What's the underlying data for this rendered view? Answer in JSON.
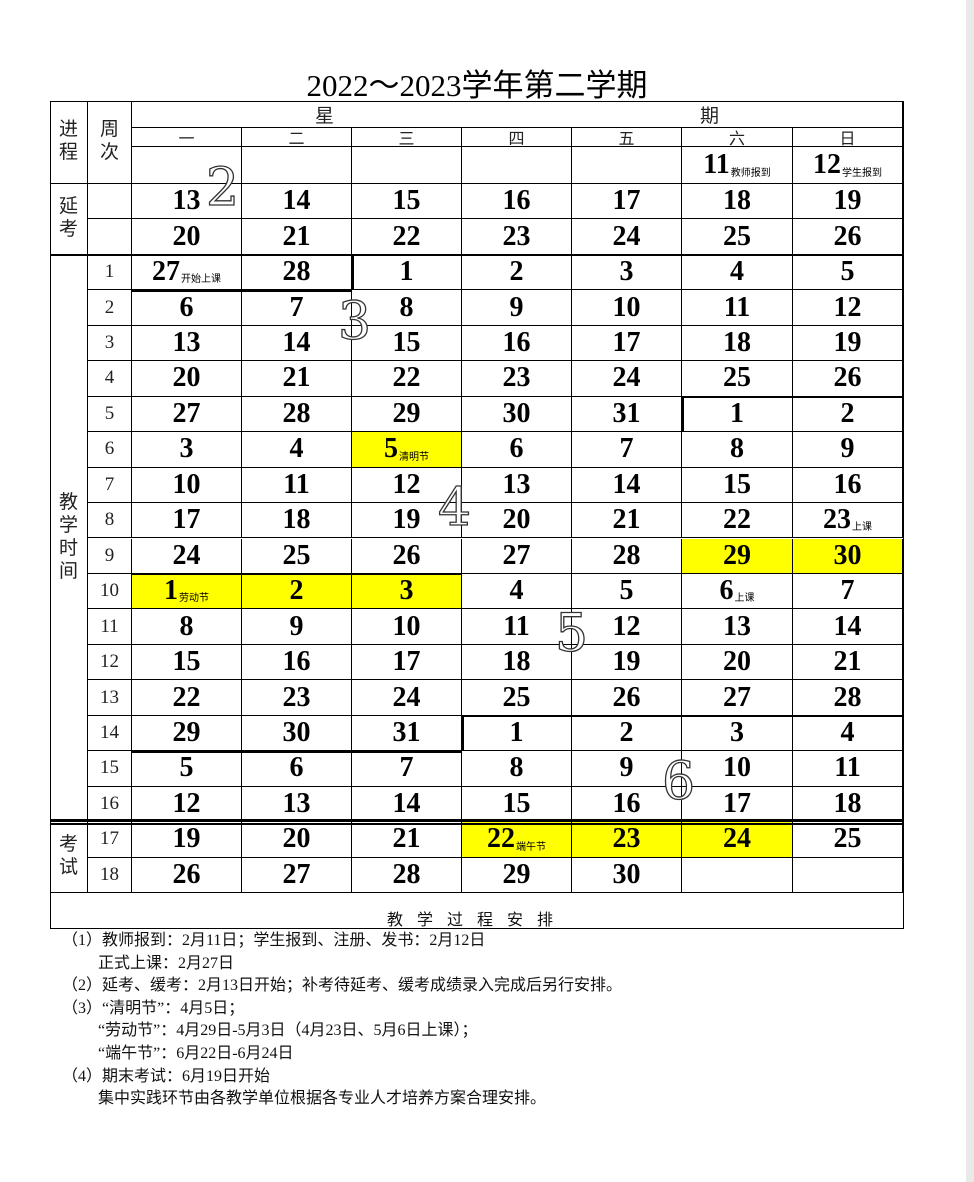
{
  "title": "2022～2023学年第二学期",
  "header": {
    "progress": "进程",
    "week": "周次",
    "xing": "星",
    "qi": "期",
    "weekdays": [
      "一",
      "二",
      "三",
      "四",
      "五",
      "六",
      "日"
    ]
  },
  "sections": {
    "makeup": "延考",
    "teaching": "教学时间",
    "exam": "考试"
  },
  "highlight_color": "#ffff00",
  "rows": [
    {
      "week": "",
      "cells": [
        {
          "d": ""
        },
        {
          "d": ""
        },
        {
          "d": ""
        },
        {
          "d": ""
        },
        {
          "d": ""
        },
        {
          "d": "11",
          "n": "教师报到"
        },
        {
          "d": "12",
          "n": "学生报到"
        }
      ]
    },
    {
      "week": "",
      "cells": [
        {
          "d": "13"
        },
        {
          "d": "14"
        },
        {
          "d": "15"
        },
        {
          "d": "16"
        },
        {
          "d": "17"
        },
        {
          "d": "18"
        },
        {
          "d": "19"
        }
      ]
    },
    {
      "week": "",
      "cells": [
        {
          "d": "20"
        },
        {
          "d": "21"
        },
        {
          "d": "22"
        },
        {
          "d": "23"
        },
        {
          "d": "24"
        },
        {
          "d": "25"
        },
        {
          "d": "26"
        }
      ]
    },
    {
      "week": "1",
      "cells": [
        {
          "d": "27",
          "n": "开始上课"
        },
        {
          "d": "28"
        },
        {
          "d": "1"
        },
        {
          "d": "2"
        },
        {
          "d": "3"
        },
        {
          "d": "4"
        },
        {
          "d": "5"
        }
      ]
    },
    {
      "week": "2",
      "cells": [
        {
          "d": "6"
        },
        {
          "d": "7"
        },
        {
          "d": "8"
        },
        {
          "d": "9"
        },
        {
          "d": "10"
        },
        {
          "d": "11"
        },
        {
          "d": "12"
        }
      ]
    },
    {
      "week": "3",
      "cells": [
        {
          "d": "13"
        },
        {
          "d": "14"
        },
        {
          "d": "15"
        },
        {
          "d": "16"
        },
        {
          "d": "17"
        },
        {
          "d": "18"
        },
        {
          "d": "19"
        }
      ]
    },
    {
      "week": "4",
      "cells": [
        {
          "d": "20"
        },
        {
          "d": "21"
        },
        {
          "d": "22"
        },
        {
          "d": "23"
        },
        {
          "d": "24"
        },
        {
          "d": "25"
        },
        {
          "d": "26"
        }
      ]
    },
    {
      "week": "5",
      "cells": [
        {
          "d": "27"
        },
        {
          "d": "28"
        },
        {
          "d": "29"
        },
        {
          "d": "30"
        },
        {
          "d": "31"
        },
        {
          "d": "1"
        },
        {
          "d": "2"
        }
      ]
    },
    {
      "week": "6",
      "cells": [
        {
          "d": "3"
        },
        {
          "d": "4"
        },
        {
          "d": "5",
          "n": "清明节",
          "hl": true
        },
        {
          "d": "6"
        },
        {
          "d": "7"
        },
        {
          "d": "8"
        },
        {
          "d": "9"
        }
      ]
    },
    {
      "week": "7",
      "cells": [
        {
          "d": "10"
        },
        {
          "d": "11"
        },
        {
          "d": "12"
        },
        {
          "d": "13"
        },
        {
          "d": "14"
        },
        {
          "d": "15"
        },
        {
          "d": "16"
        }
      ]
    },
    {
      "week": "8",
      "cells": [
        {
          "d": "17"
        },
        {
          "d": "18"
        },
        {
          "d": "19"
        },
        {
          "d": "20"
        },
        {
          "d": "21"
        },
        {
          "d": "22"
        },
        {
          "d": "23",
          "n": "上课"
        }
      ]
    },
    {
      "week": "9",
      "cells": [
        {
          "d": "24"
        },
        {
          "d": "25"
        },
        {
          "d": "26"
        },
        {
          "d": "27"
        },
        {
          "d": "28"
        },
        {
          "d": "29",
          "hl": true
        },
        {
          "d": "30",
          "hl": true
        }
      ]
    },
    {
      "week": "10",
      "cells": [
        {
          "d": "1",
          "n": "劳动节",
          "hl": true
        },
        {
          "d": "2",
          "hl": true
        },
        {
          "d": "3",
          "hl": true
        },
        {
          "d": "4"
        },
        {
          "d": "5"
        },
        {
          "d": "6",
          "n": "上课"
        },
        {
          "d": "7"
        }
      ]
    },
    {
      "week": "11",
      "cells": [
        {
          "d": "8"
        },
        {
          "d": "9"
        },
        {
          "d": "10"
        },
        {
          "d": "11"
        },
        {
          "d": "12"
        },
        {
          "d": "13"
        },
        {
          "d": "14"
        }
      ]
    },
    {
      "week": "12",
      "cells": [
        {
          "d": "15"
        },
        {
          "d": "16"
        },
        {
          "d": "17"
        },
        {
          "d": "18"
        },
        {
          "d": "19"
        },
        {
          "d": "20"
        },
        {
          "d": "21"
        }
      ]
    },
    {
      "week": "13",
      "cells": [
        {
          "d": "22"
        },
        {
          "d": "23"
        },
        {
          "d": "24"
        },
        {
          "d": "25"
        },
        {
          "d": "26"
        },
        {
          "d": "27"
        },
        {
          "d": "28"
        }
      ]
    },
    {
      "week": "14",
      "cells": [
        {
          "d": "29"
        },
        {
          "d": "30"
        },
        {
          "d": "31"
        },
        {
          "d": "1"
        },
        {
          "d": "2"
        },
        {
          "d": "3"
        },
        {
          "d": "4"
        }
      ]
    },
    {
      "week": "15",
      "cells": [
        {
          "d": "5"
        },
        {
          "d": "6"
        },
        {
          "d": "7"
        },
        {
          "d": "8"
        },
        {
          "d": "9"
        },
        {
          "d": "10"
        },
        {
          "d": "11"
        }
      ]
    },
    {
      "week": "16",
      "cells": [
        {
          "d": "12"
        },
        {
          "d": "13"
        },
        {
          "d": "14"
        },
        {
          "d": "15"
        },
        {
          "d": "16"
        },
        {
          "d": "17"
        },
        {
          "d": "18"
        }
      ]
    },
    {
      "week": "17",
      "cells": [
        {
          "d": "19"
        },
        {
          "d": "20"
        },
        {
          "d": "21"
        },
        {
          "d": "22",
          "n": "端午节",
          "hl": true
        },
        {
          "d": "23",
          "hl": true
        },
        {
          "d": "24",
          "hl": true
        },
        {
          "d": "25"
        }
      ]
    },
    {
      "week": "18",
      "cells": [
        {
          "d": "26"
        },
        {
          "d": "27"
        },
        {
          "d": "28"
        },
        {
          "d": "29"
        },
        {
          "d": "30"
        },
        {
          "d": ""
        },
        {
          "d": ""
        }
      ]
    }
  ],
  "month_marks": [
    "2",
    "3",
    "4",
    "5",
    "6"
  ],
  "notes": {
    "title": "教学过程安排",
    "lines": [
      "（1）教师报到：2月11日；学生报到、注册、发书：2月12日",
      "　　 正式上课：2月27日",
      "（2）延考、缓考：2月13日开始；补考待延考、缓考成绩录入完成后另行安排。",
      "（3）“清明节”：4月5日；",
      "　　 “劳动节”：4月29日-5月3日（4月23日、5月6日上课）；",
      "　　 “端午节”：6月22日-6月24日",
      "（4）期末考试：6月19日开始",
      "　　 集中实践环节由各教学单位根据各专业人才培养方案合理安排。"
    ]
  }
}
